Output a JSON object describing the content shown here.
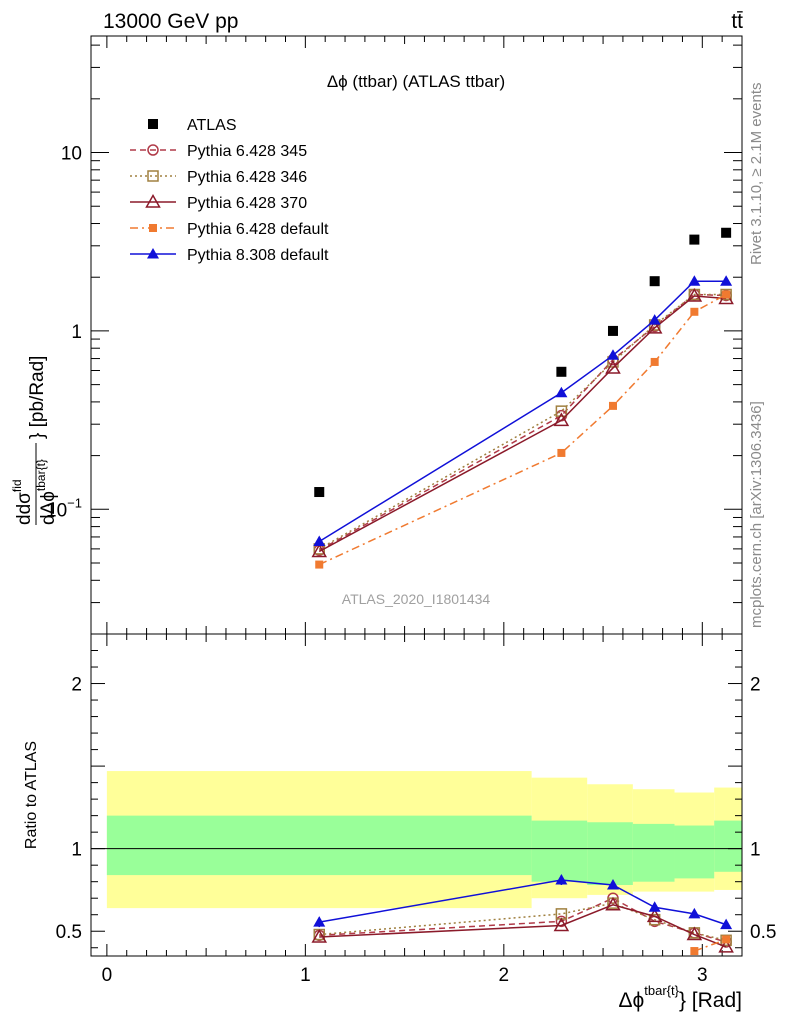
{
  "header": {
    "left": "13000 GeV pp",
    "right": "tt̄"
  },
  "side_labels": {
    "rivet": "Rivet 3.1.10, ≥ 2.1M events",
    "mcplots": "mcplots.cern.ch [arXiv:1306.3436]"
  },
  "chart_data": [
    {
      "type": "scatter",
      "panel": "main",
      "title": "Δϕ (ttbar) (ATLAS ttbar)",
      "watermark": "ATLAS_2020_I1801434",
      "ylabel": "dσ^fid / dΔϕ^tbar{t} [pb/Rad]",
      "ylabel_main": "dσ",
      "ylabel_main_sup": "fid",
      "ylabel_den": "dΔϕ",
      "ylabel_den_sup": "tbar{t}",
      "ylabel_unit": "} [pb/Rad]",
      "yscale": "log",
      "xlim": [
        -0.08,
        3.2
      ],
      "ylim": [
        0.02,
        45
      ],
      "y_ticks": [
        {
          "value": 0.1,
          "label": "10",
          "sup": "−1"
        },
        {
          "value": 1,
          "label": "1",
          "sup": ""
        },
        {
          "value": 10,
          "label": "10",
          "sup": ""
        }
      ],
      "x": [
        1.07,
        2.29,
        2.55,
        2.76,
        2.96,
        3.12
      ],
      "series": [
        {
          "name": "ATLAS",
          "color": "#000000",
          "marker": "square-filled",
          "line": "none",
          "values": [
            0.125,
            0.59,
            1.0,
            1.9,
            3.25,
            3.55
          ]
        },
        {
          "name": "Pythia 6.428 345",
          "color": "#b03a48",
          "marker": "circle-open",
          "line": "dashed",
          "values": [
            0.059,
            0.335,
            0.69,
            1.06,
            1.6,
            1.58
          ]
        },
        {
          "name": "Pythia 6.428 346",
          "color": "#a08040",
          "marker": "square-open",
          "line": "dotted",
          "values": [
            0.06,
            0.355,
            0.67,
            1.08,
            1.6,
            1.6
          ]
        },
        {
          "name": "Pythia 6.428 370",
          "color": "#8b1a2a",
          "marker": "triangle-open",
          "line": "solid",
          "values": [
            0.058,
            0.315,
            0.62,
            1.04,
            1.57,
            1.52
          ]
        },
        {
          "name": "Pythia 6.428 default",
          "color": "#f07a30",
          "marker": "square-filled-small",
          "line": "dashdot",
          "values": [
            0.049,
            0.207,
            0.38,
            0.67,
            1.28,
            1.6
          ]
        },
        {
          "name": "Pythia 8.308 default",
          "color": "#1010d8",
          "marker": "triangle-filled",
          "line": "solid",
          "values": [
            0.066,
            0.45,
            0.73,
            1.15,
            1.9,
            1.9
          ]
        }
      ]
    },
    {
      "type": "line",
      "panel": "ratio",
      "ylabel": "Ratio to ATLAS",
      "xlabel": "Δϕ",
      "xlabel_sup": "tbar{t}",
      "xlabel_unit": "} [Rad]",
      "xlim": [
        -0.08,
        3.2
      ],
      "ylim": [
        0.35,
        2.3
      ],
      "x_ticks": [
        0,
        1,
        2,
        3
      ],
      "y_ticks": [
        0.5,
        1,
        2
      ],
      "reference_line": 1,
      "bands": {
        "edges": [
          0,
          2.14,
          2.42,
          2.65,
          2.86,
          3.06,
          3.2
        ],
        "inner": {
          "color": "#99ff99",
          "low": [
            0.84,
            0.8,
            0.78,
            0.8,
            0.82,
            0.86
          ],
          "high": [
            1.2,
            1.17,
            1.16,
            1.15,
            1.14,
            1.17
          ]
        },
        "outer": {
          "color": "#ffff99",
          "low": [
            0.64,
            0.7,
            0.72,
            0.74,
            0.74,
            0.75
          ],
          "high": [
            1.47,
            1.43,
            1.39,
            1.36,
            1.34,
            1.37
          ]
        }
      },
      "x": [
        1.07,
        2.29,
        2.55,
        2.76,
        2.96,
        3.12
      ],
      "series": [
        {
          "name": "Pythia 6.428 345",
          "color": "#b03a48",
          "marker": "circle-open",
          "line": "dashed",
          "values": [
            0.475,
            0.56,
            0.7,
            0.56,
            0.49,
            0.435
          ],
          "errors": []
        },
        {
          "name": "Pythia 6.428 346",
          "color": "#a08040",
          "marker": "square-open",
          "line": "dotted",
          "values": [
            0.48,
            0.605,
            0.67,
            0.57,
            0.49,
            0.445
          ],
          "errors": []
        },
        {
          "name": "Pythia 6.428 370",
          "color": "#8b1a2a",
          "marker": "triangle-open",
          "line": "solid",
          "values": [
            0.465,
            0.535,
            0.66,
            0.59,
            0.48,
            0.405
          ],
          "errors": []
        },
        {
          "name": "Pythia 6.428 default",
          "color": "#f07a30",
          "marker": "square-filled-small",
          "line": "dashdot",
          "values": [
            null,
            null,
            null,
            null,
            0.38,
            0.45
          ],
          "errors": []
        },
        {
          "name": "Pythia 8.308 default",
          "color": "#1010d8",
          "marker": "triangle-filled",
          "line": "solid",
          "values": [
            0.555,
            0.81,
            0.78,
            0.645,
            0.605,
            0.54
          ],
          "errors": [
            0.03,
            0.03,
            0.025,
            0.02,
            0.015,
            0.015
          ]
        }
      ]
    }
  ]
}
